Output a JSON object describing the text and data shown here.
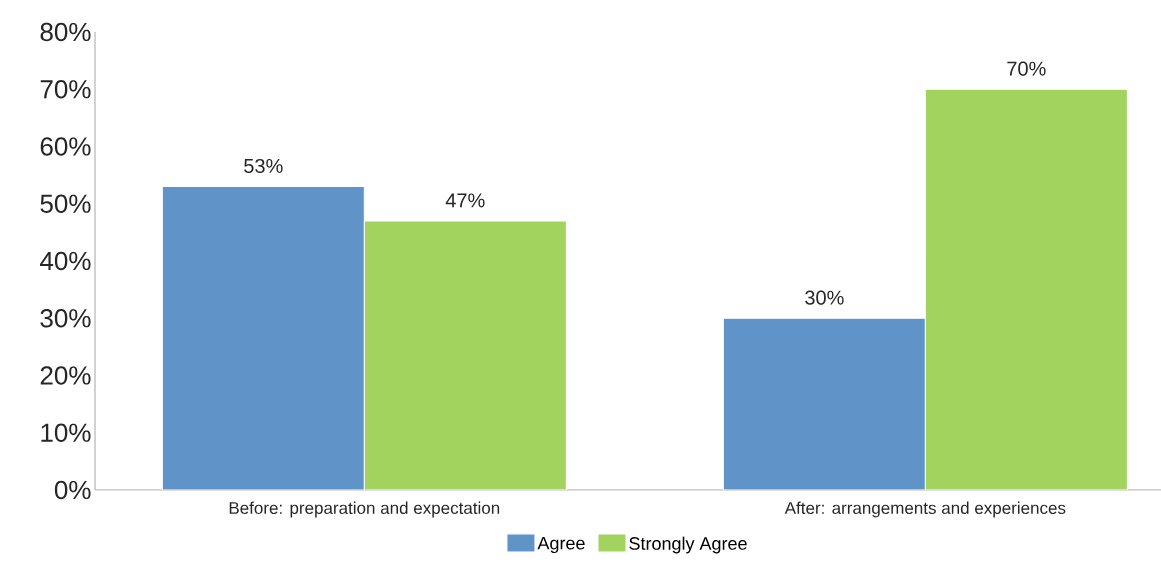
{
  "chart_data": {
    "type": "bar",
    "categories": [
      "Before: preparation and expectation",
      "After: arrangements and experiences"
    ],
    "series": [
      {
        "name": "Agree",
        "color": "#6094c8",
        "values": [
          53,
          30
        ],
        "value_labels": [
          "53%",
          "30%"
        ]
      },
      {
        "name": "Strongly Agree",
        "color": "#a2d35f",
        "values": [
          47,
          70
        ],
        "value_labels": [
          "47%",
          "70%"
        ]
      }
    ],
    "ylim": [
      0,
      80
    ],
    "yticks": [
      {
        "value": 0,
        "label": "0%"
      },
      {
        "value": 10,
        "label": "10%"
      },
      {
        "value": 20,
        "label": "20%"
      },
      {
        "value": 30,
        "label": "30%"
      },
      {
        "value": 40,
        "label": "40%"
      },
      {
        "value": 50,
        "label": "50%"
      },
      {
        "value": 60,
        "label": "60%"
      },
      {
        "value": 70,
        "label": "70%"
      },
      {
        "value": 80,
        "label": "80%"
      }
    ],
    "grid": false,
    "legend": "bottom"
  }
}
